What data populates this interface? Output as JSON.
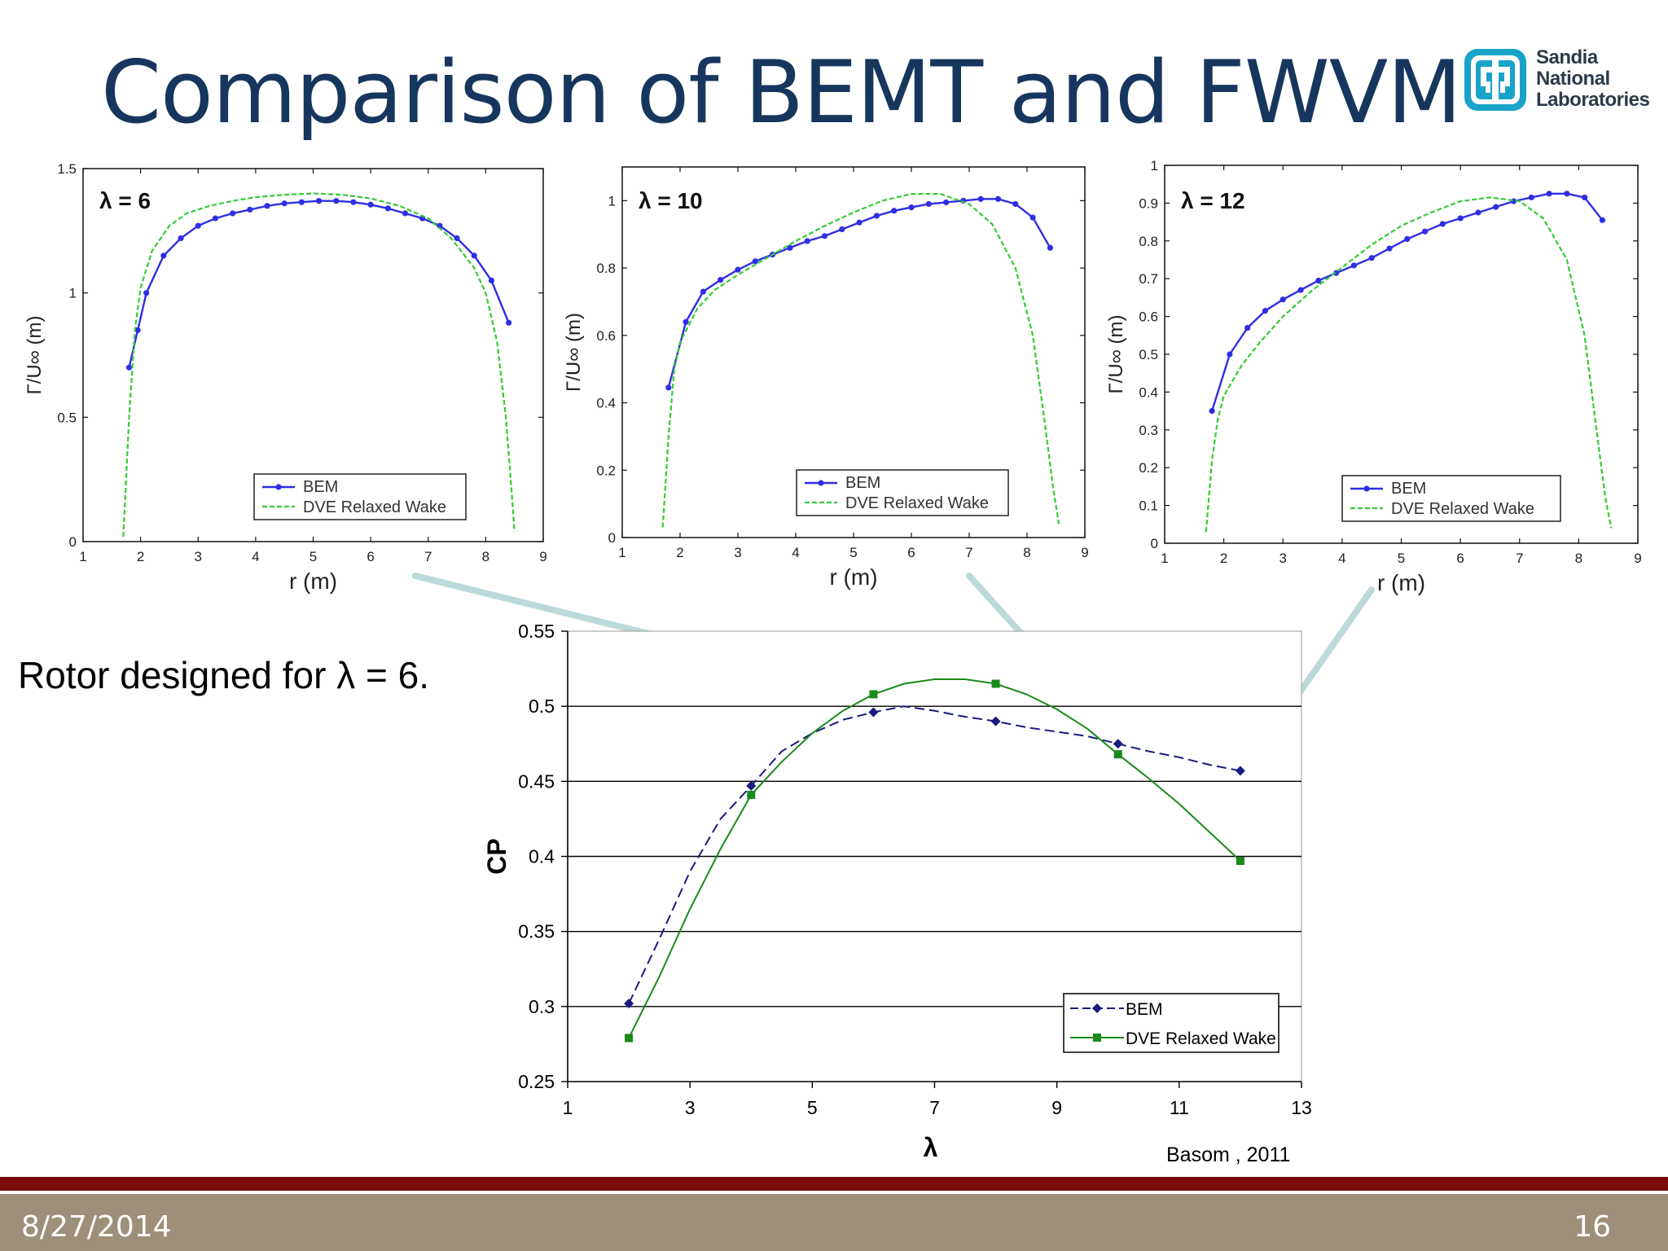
{
  "slide": {
    "title": "Comparison of BEMT and FWVM",
    "logo_lines": [
      "Sandia",
      "National",
      "Laboratories"
    ],
    "rotor_note": "Rotor designed for λ = 6.",
    "credit": "Basom , 2011",
    "footer_date": "8/27/2014",
    "footer_page": "16"
  },
  "colors": {
    "title": "#17365d",
    "bem_small": "#2e2ee6",
    "dve_small": "#33cc33",
    "bem_main": "#1a1a80",
    "dve_main": "#1a8a1a",
    "arrow": "#bcd9d9",
    "red_bar": "#7b0a0a",
    "footer": "#9e8f79",
    "logo": "#1aa3c8"
  },
  "chart_data": [
    {
      "type": "line",
      "title": "λ = 6",
      "xlabel": "r (m)",
      "ylabel": "Γ/U∞ (m)",
      "xlim": [
        1,
        9
      ],
      "ylim": [
        0,
        1.5
      ],
      "xticks": [
        "1",
        "2",
        "3",
        "4",
        "5",
        "6",
        "7",
        "8",
        "9"
      ],
      "yticks": [
        "0",
        "0.5",
        "1",
        "1.5"
      ],
      "legend": "lower-right",
      "series": [
        {
          "name": "BEM",
          "marker": "dot",
          "x": [
            1.8,
            1.95,
            2.1,
            2.4,
            2.7,
            3.0,
            3.3,
            3.6,
            3.9,
            4.2,
            4.5,
            4.8,
            5.1,
            5.4,
            5.7,
            6.0,
            6.3,
            6.6,
            6.9,
            7.2,
            7.5,
            7.8,
            8.1,
            8.4
          ],
          "y": [
            0.7,
            0.85,
            1.0,
            1.15,
            1.22,
            1.27,
            1.3,
            1.32,
            1.335,
            1.35,
            1.36,
            1.365,
            1.37,
            1.37,
            1.365,
            1.355,
            1.34,
            1.32,
            1.3,
            1.27,
            1.22,
            1.15,
            1.05,
            0.88
          ]
        },
        {
          "name": "DVE Relaxed Wake",
          "style": "dashed",
          "x": [
            1.7,
            1.8,
            1.9,
            2.0,
            2.2,
            2.5,
            2.8,
            3.2,
            3.6,
            4.0,
            4.5,
            5.0,
            5.5,
            6.0,
            6.5,
            7.0,
            7.4,
            7.8,
            8.0,
            8.2,
            8.35,
            8.45,
            8.5
          ],
          "y": [
            0.02,
            0.5,
            0.85,
            1.02,
            1.17,
            1.27,
            1.32,
            1.35,
            1.37,
            1.385,
            1.395,
            1.4,
            1.395,
            1.38,
            1.35,
            1.3,
            1.22,
            1.1,
            1.0,
            0.8,
            0.5,
            0.2,
            0.04
          ]
        }
      ]
    },
    {
      "type": "line",
      "title": "λ = 10",
      "xlabel": "r (m)",
      "ylabel": "Γ/U∞ (m)",
      "xlim": [
        1,
        9
      ],
      "ylim": [
        0,
        1.1
      ],
      "xticks": [
        "1",
        "2",
        "3",
        "4",
        "5",
        "6",
        "7",
        "8",
        "9"
      ],
      "yticks": [
        "0",
        "0.2",
        "0.4",
        "0.6",
        "0.8",
        "1"
      ],
      "legend": "lower-right",
      "series": [
        {
          "name": "BEM",
          "marker": "dot",
          "x": [
            1.8,
            2.1,
            2.4,
            2.7,
            3.0,
            3.3,
            3.6,
            3.9,
            4.2,
            4.5,
            4.8,
            5.1,
            5.4,
            5.7,
            6.0,
            6.3,
            6.6,
            6.9,
            7.2,
            7.5,
            7.8,
            8.1,
            8.4
          ],
          "y": [
            0.445,
            0.64,
            0.73,
            0.765,
            0.795,
            0.82,
            0.84,
            0.86,
            0.88,
            0.895,
            0.915,
            0.935,
            0.955,
            0.97,
            0.98,
            0.99,
            0.995,
            1.0,
            1.005,
            1.005,
            0.99,
            0.95,
            0.86
          ]
        },
        {
          "name": "DVE Relaxed Wake",
          "style": "dashed",
          "x": [
            1.7,
            1.8,
            1.9,
            2.0,
            2.3,
            2.6,
            3.0,
            3.5,
            4.0,
            4.5,
            5.0,
            5.5,
            6.0,
            6.5,
            7.0,
            7.4,
            7.8,
            8.1,
            8.3,
            8.45,
            8.55
          ],
          "y": [
            0.03,
            0.3,
            0.5,
            0.58,
            0.68,
            0.735,
            0.78,
            0.83,
            0.88,
            0.925,
            0.965,
            1.0,
            1.02,
            1.02,
            0.99,
            0.93,
            0.8,
            0.6,
            0.35,
            0.15,
            0.04
          ]
        }
      ]
    },
    {
      "type": "line",
      "title": "λ = 12",
      "xlabel": "r (m)",
      "ylabel": "Γ/U∞ (m)",
      "xlim": [
        1,
        9
      ],
      "ylim": [
        0,
        1
      ],
      "xticks": [
        "1",
        "2",
        "3",
        "4",
        "5",
        "6",
        "7",
        "8",
        "9"
      ],
      "yticks": [
        "0",
        "0.1",
        "0.2",
        "0.3",
        "0.4",
        "0.5",
        "0.6",
        "0.7",
        "0.8",
        "0.9",
        "1"
      ],
      "legend": "lower-right",
      "series": [
        {
          "name": "BEM",
          "marker": "dot",
          "x": [
            1.8,
            2.1,
            2.4,
            2.7,
            3.0,
            3.3,
            3.6,
            3.9,
            4.2,
            4.5,
            4.8,
            5.1,
            5.4,
            5.7,
            6.0,
            6.3,
            6.6,
            6.9,
            7.2,
            7.5,
            7.8,
            8.1,
            8.4
          ],
          "y": [
            0.35,
            0.5,
            0.57,
            0.615,
            0.645,
            0.67,
            0.695,
            0.715,
            0.735,
            0.755,
            0.78,
            0.805,
            0.825,
            0.845,
            0.86,
            0.875,
            0.89,
            0.905,
            0.915,
            0.925,
            0.925,
            0.915,
            0.855
          ]
        },
        {
          "name": "DVE Relaxed Wake",
          "style": "dashed",
          "x": [
            1.7,
            1.8,
            1.9,
            2.0,
            2.3,
            2.6,
            3.0,
            3.5,
            4.0,
            4.5,
            5.0,
            5.5,
            6.0,
            6.5,
            7.0,
            7.4,
            7.8,
            8.1,
            8.3,
            8.45,
            8.55
          ],
          "y": [
            0.03,
            0.22,
            0.33,
            0.39,
            0.47,
            0.53,
            0.6,
            0.67,
            0.73,
            0.79,
            0.84,
            0.875,
            0.905,
            0.915,
            0.905,
            0.86,
            0.75,
            0.55,
            0.3,
            0.12,
            0.04
          ]
        }
      ]
    },
    {
      "type": "line",
      "title": "",
      "xlabel": "λ",
      "ylabel": "CP",
      "xlim": [
        1,
        13
      ],
      "ylim": [
        0.25,
        0.55
      ],
      "xticks": [
        "1",
        "3",
        "5",
        "7",
        "9",
        "11",
        "13"
      ],
      "yticks": [
        "0.25",
        "0.3",
        "0.35",
        "0.4",
        "0.45",
        "0.5",
        "0.55"
      ],
      "grid": "horizontal",
      "legend": "lower-right",
      "series": [
        {
          "name": "BEM",
          "marker": "diamond",
          "style": "dashed",
          "points_x": [
            2,
            4,
            6,
            8,
            10,
            12
          ],
          "points_y": [
            0.302,
            0.447,
            0.496,
            0.49,
            0.475,
            0.457
          ],
          "x": [
            2,
            2.5,
            3,
            3.5,
            4,
            4.5,
            5,
            5.5,
            6,
            6.5,
            7,
            7.5,
            8,
            8.5,
            9,
            9.5,
            10,
            10.5,
            11,
            11.5,
            12
          ],
          "y": [
            0.302,
            0.345,
            0.39,
            0.425,
            0.447,
            0.47,
            0.482,
            0.491,
            0.496,
            0.5,
            0.497,
            0.493,
            0.49,
            0.486,
            0.483,
            0.48,
            0.475,
            0.47,
            0.466,
            0.461,
            0.457
          ]
        },
        {
          "name": "DVE Relaxed Wake",
          "marker": "square",
          "style": "solid",
          "points_x": [
            2,
            4,
            6,
            8,
            10,
            12
          ],
          "points_y": [
            0.279,
            0.441,
            0.508,
            0.515,
            0.468,
            0.397
          ],
          "x": [
            2,
            2.5,
            3,
            3.5,
            4,
            4.5,
            5,
            5.5,
            6,
            6.5,
            7,
            7.5,
            8,
            8.5,
            9,
            9.5,
            10,
            10.5,
            11,
            11.5,
            12
          ],
          "y": [
            0.279,
            0.32,
            0.365,
            0.405,
            0.441,
            0.463,
            0.482,
            0.497,
            0.508,
            0.515,
            0.518,
            0.518,
            0.515,
            0.508,
            0.498,
            0.485,
            0.468,
            0.452,
            0.435,
            0.416,
            0.397
          ]
        }
      ]
    }
  ]
}
